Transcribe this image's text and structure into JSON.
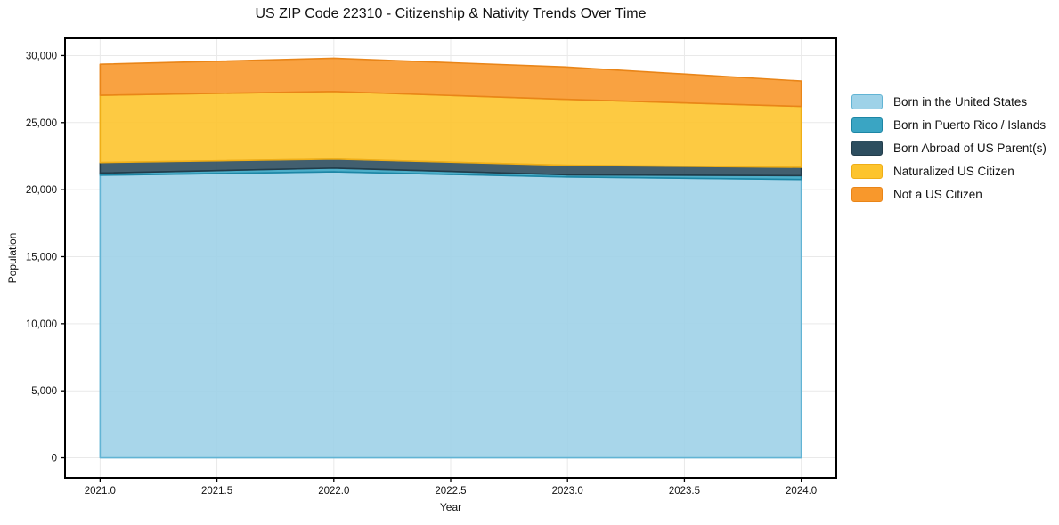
{
  "chart_data": {
    "type": "area",
    "stacked": true,
    "title": "US ZIP Code 22310 - Citizenship & Nativity Trends Over Time",
    "xlabel": "Year",
    "ylabel": "Population",
    "x": [
      2021,
      2022,
      2023,
      2024
    ],
    "series": [
      {
        "name": "Born in the United States",
        "values": [
          21080,
          21330,
          20950,
          20760
        ],
        "color": "#9ed2e8",
        "edge_color": "#62b4d4"
      },
      {
        "name": "Born in Puerto Rico / Islands",
        "values": [
          160,
          280,
          160,
          290
        ],
        "color": "#3aa5c3",
        "edge_color": "#1d86a5"
      },
      {
        "name": "Born Abroad of US Parent(s)",
        "values": [
          780,
          670,
          710,
          620
        ],
        "color": "#2d4e5f",
        "edge_color": "#223c4a"
      },
      {
        "name": "Naturalized US Citizen",
        "values": [
          5020,
          5040,
          4910,
          4540
        ],
        "color": "#fdc42d",
        "edge_color": "#efae17"
      },
      {
        "name": "Not a US Citizen",
        "values": [
          2310,
          2480,
          2410,
          1890
        ],
        "color": "#f8982c",
        "edge_color": "#e98518"
      }
    ],
    "x_ticks": [
      {
        "value": 2021.0,
        "label": "2021.0"
      },
      {
        "value": 2021.5,
        "label": "2021.5"
      },
      {
        "value": 2022.0,
        "label": "2022.0"
      },
      {
        "value": 2022.5,
        "label": "2022.5"
      },
      {
        "value": 2023.0,
        "label": "2023.0"
      },
      {
        "value": 2023.5,
        "label": "2023.5"
      },
      {
        "value": 2024.0,
        "label": "2024.0"
      }
    ],
    "y_ticks": [
      {
        "value": 0,
        "label": "0"
      },
      {
        "value": 5000,
        "label": "5,000"
      },
      {
        "value": 10000,
        "label": "10,000"
      },
      {
        "value": 15000,
        "label": "15,000"
      },
      {
        "value": 20000,
        "label": "20,000"
      },
      {
        "value": 25000,
        "label": "25,000"
      },
      {
        "value": 30000,
        "label": "30,000"
      }
    ],
    "xlim": [
      2020.85,
      2024.15
    ],
    "ylim": [
      -1490,
      31290
    ],
    "grid": true,
    "legend_position": "right-outside"
  },
  "colors": {
    "background": "#ffffff",
    "grid": "#e9e9e9",
    "axis": "#000000",
    "text": "#111111"
  }
}
